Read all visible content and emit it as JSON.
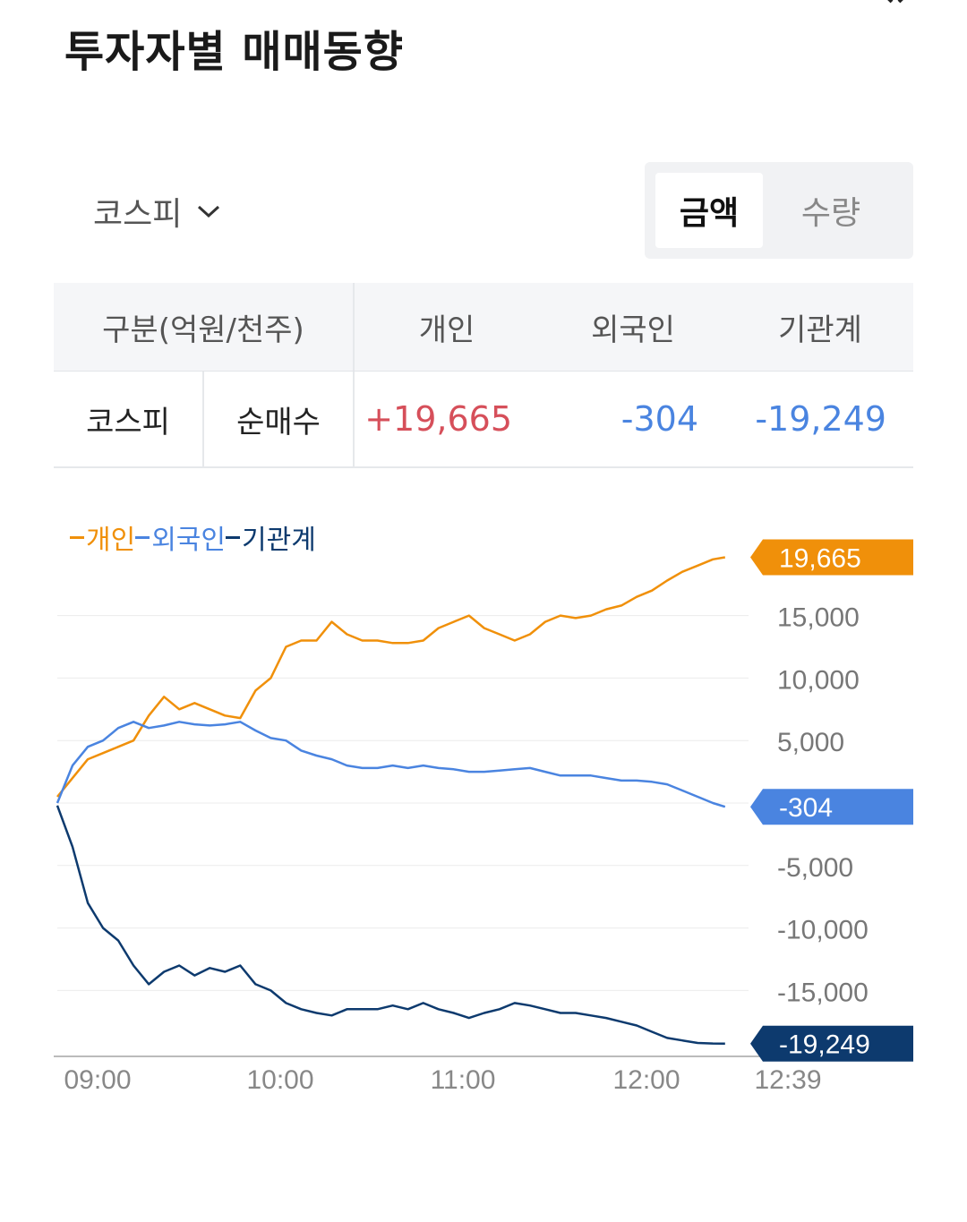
{
  "header": {
    "title": "투자자별 매매동향"
  },
  "filter": {
    "market": "코스피"
  },
  "toggle": {
    "amount_label": "금액",
    "qty_label": "수량",
    "active": "amount"
  },
  "table": {
    "headers": [
      "구분(억원/천주)",
      "개인",
      "외국인",
      "기관계"
    ],
    "row": {
      "market": "코스피",
      "type": "순매수",
      "individual": "+19,665",
      "foreign": "-304",
      "institution": "-19,249"
    }
  },
  "colors": {
    "individual": "#f0900a",
    "foreign": "#4a84e0",
    "institution": "#0d3a6e",
    "positive": "#d64f5a",
    "negative": "#4a84e0"
  },
  "chart_data": {
    "type": "line",
    "legend": [
      "개인",
      "외국인",
      "기관계"
    ],
    "ylim": [
      -20000,
      22000
    ],
    "yticks": [
      15000,
      10000,
      5000,
      -5000,
      -10000,
      -15000
    ],
    "ytick_labels": [
      "15,000",
      "10,000",
      "5,000",
      "-5,000",
      "-10,000",
      "-15,000"
    ],
    "xticks": [
      "09:00",
      "10:00",
      "11:00",
      "12:00",
      "12:39"
    ],
    "end_labels": [
      "19,665",
      "-304",
      "-19,249"
    ],
    "series": [
      {
        "name": "개인",
        "color": "#f0900a",
        "x": [
          "09:00",
          "09:05",
          "09:10",
          "09:15",
          "09:20",
          "09:25",
          "09:30",
          "09:35",
          "09:40",
          "09:45",
          "09:50",
          "09:55",
          "10:00",
          "10:05",
          "10:10",
          "10:15",
          "10:20",
          "10:25",
          "10:30",
          "10:35",
          "10:40",
          "10:45",
          "10:50",
          "10:55",
          "11:00",
          "11:05",
          "11:10",
          "11:15",
          "11:20",
          "11:25",
          "11:30",
          "11:35",
          "11:40",
          "11:45",
          "11:50",
          "11:55",
          "12:00",
          "12:05",
          "12:10",
          "12:15",
          "12:20",
          "12:25",
          "12:30",
          "12:35",
          "12:39"
        ],
        "values": [
          500,
          2000,
          3500,
          4000,
          4500,
          5000,
          7000,
          8500,
          7500,
          8000,
          7500,
          7000,
          6800,
          9000,
          10000,
          12500,
          13000,
          13000,
          14500,
          13500,
          13000,
          13000,
          12800,
          12800,
          13000,
          14000,
          14500,
          15000,
          14000,
          13500,
          13000,
          13500,
          14500,
          15000,
          14800,
          15000,
          15500,
          15800,
          16500,
          17000,
          17800,
          18500,
          19000,
          19500,
          19665
        ]
      },
      {
        "name": "외국인",
        "color": "#4a84e0",
        "x": [
          "09:00",
          "09:05",
          "09:10",
          "09:15",
          "09:20",
          "09:25",
          "09:30",
          "09:35",
          "09:40",
          "09:45",
          "09:50",
          "09:55",
          "10:00",
          "10:05",
          "10:10",
          "10:15",
          "10:20",
          "10:25",
          "10:30",
          "10:35",
          "10:40",
          "10:45",
          "10:50",
          "10:55",
          "11:00",
          "11:05",
          "11:10",
          "11:15",
          "11:20",
          "11:25",
          "11:30",
          "11:35",
          "11:40",
          "11:45",
          "11:50",
          "11:55",
          "12:00",
          "12:05",
          "12:10",
          "12:15",
          "12:20",
          "12:25",
          "12:30",
          "12:35",
          "12:39"
        ],
        "values": [
          0,
          3000,
          4500,
          5000,
          6000,
          6500,
          6000,
          6200,
          6500,
          6300,
          6200,
          6300,
          6500,
          5800,
          5200,
          5000,
          4200,
          3800,
          3500,
          3000,
          2800,
          2800,
          3000,
          2800,
          3000,
          2800,
          2700,
          2500,
          2500,
          2600,
          2700,
          2800,
          2500,
          2200,
          2200,
          2200,
          2000,
          1800,
          1800,
          1700,
          1500,
          1000,
          500,
          0,
          -304
        ]
      },
      {
        "name": "기관계",
        "color": "#0d3a6e",
        "x": [
          "09:00",
          "09:05",
          "09:10",
          "09:15",
          "09:20",
          "09:25",
          "09:30",
          "09:35",
          "09:40",
          "09:45",
          "09:50",
          "09:55",
          "10:00",
          "10:05",
          "10:10",
          "10:15",
          "10:20",
          "10:25",
          "10:30",
          "10:35",
          "10:40",
          "10:45",
          "10:50",
          "10:55",
          "11:00",
          "11:05",
          "11:10",
          "11:15",
          "11:20",
          "11:25",
          "11:30",
          "11:35",
          "11:40",
          "11:45",
          "11:50",
          "11:55",
          "12:00",
          "12:05",
          "12:10",
          "12:15",
          "12:20",
          "12:25",
          "12:30",
          "12:35",
          "12:39"
        ],
        "values": [
          -200,
          -3500,
          -8000,
          -10000,
          -11000,
          -13000,
          -14500,
          -13500,
          -13000,
          -13800,
          -13200,
          -13500,
          -13000,
          -14500,
          -15000,
          -16000,
          -16500,
          -16800,
          -17000,
          -16500,
          -16500,
          -16500,
          -16200,
          -16500,
          -16000,
          -16500,
          -16800,
          -17200,
          -16800,
          -16500,
          -16000,
          -16200,
          -16500,
          -16800,
          -16800,
          -17000,
          -17200,
          -17500,
          -17800,
          -18300,
          -18800,
          -19000,
          -19200,
          -19240,
          -19249
        ]
      }
    ]
  }
}
